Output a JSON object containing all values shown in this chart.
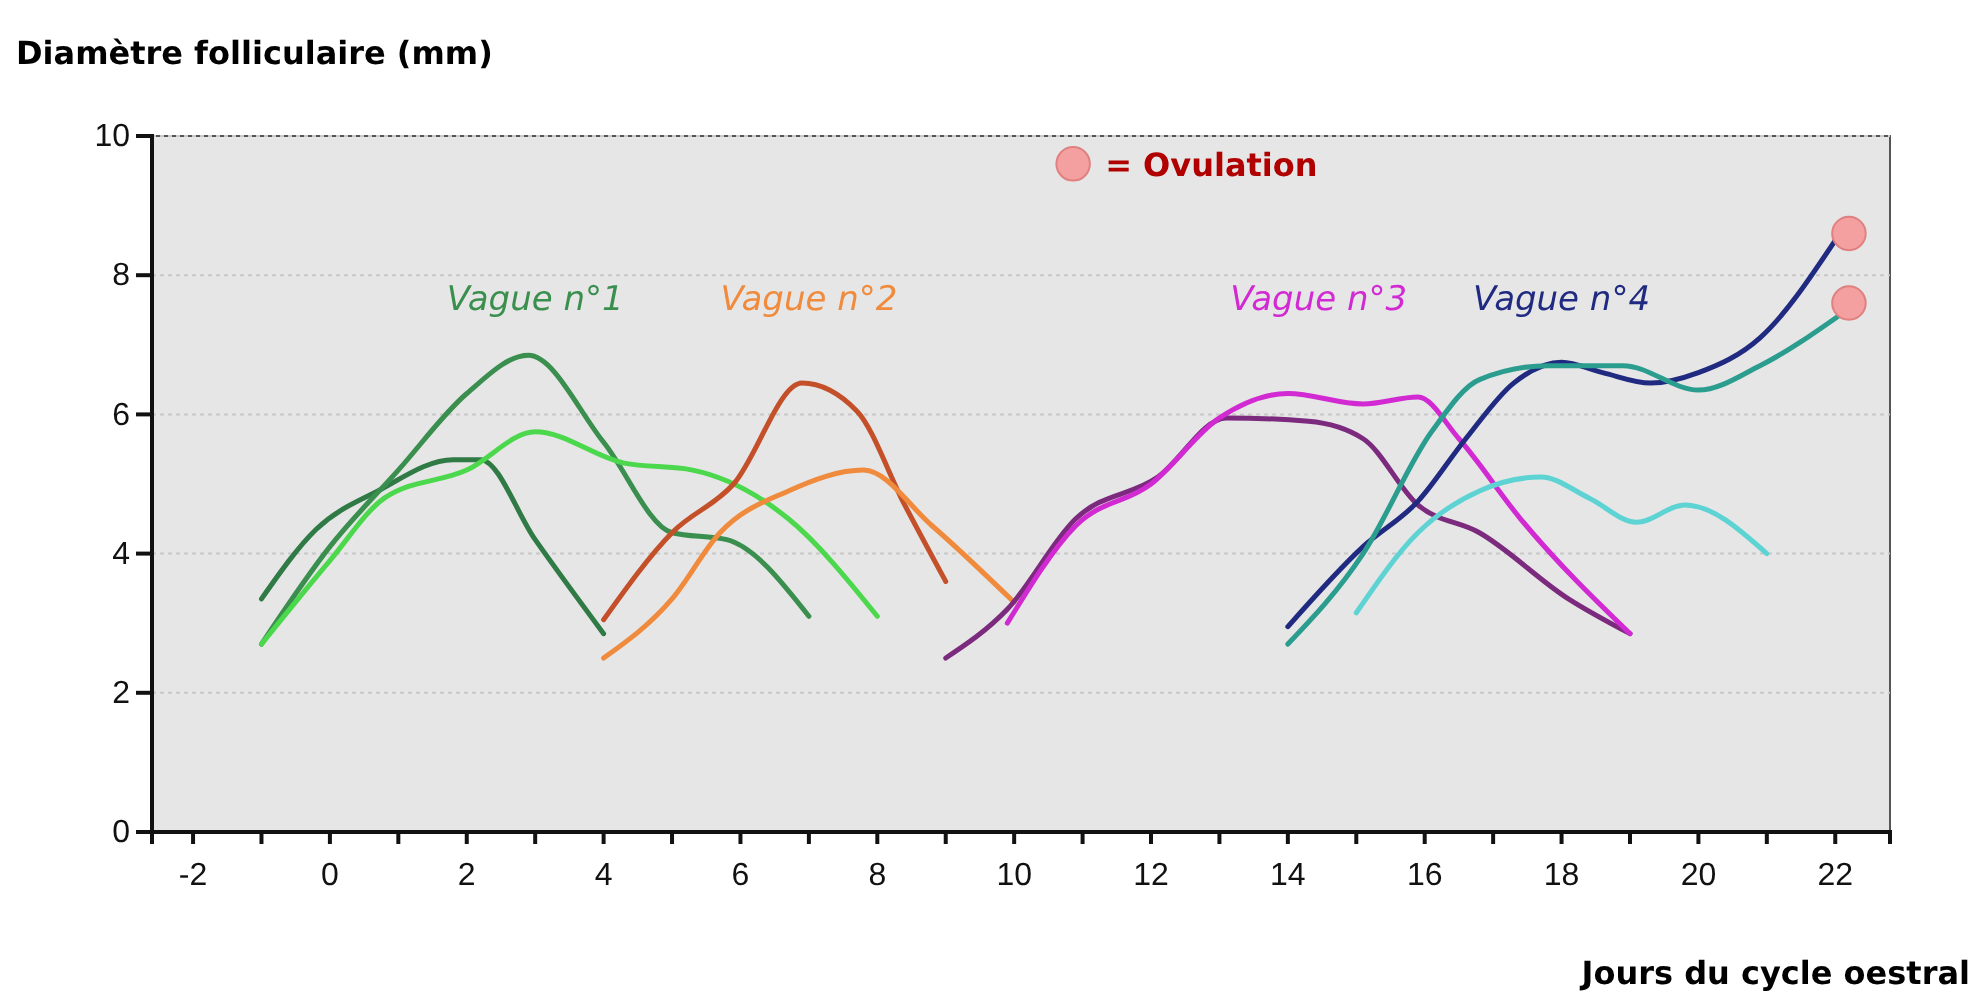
{
  "chart_data": {
    "type": "line",
    "xlabel": "Jours du cycle oestral",
    "ylabel": "Diamètre folliculaire (mm)",
    "xlim": [
      -2.6,
      22.8
    ],
    "ylim": [
      0,
      10
    ],
    "xticks": [
      -2,
      {
        "value": -1,
        "label": null
      },
      0,
      {
        "value": 1,
        "label": null
      },
      2,
      {
        "value": 3,
        "label": null
      },
      4,
      {
        "value": 5,
        "label": null
      },
      6,
      {
        "value": 7,
        "label": null
      },
      8,
      {
        "value": 9,
        "label": null
      },
      10,
      {
        "value": 11,
        "label": null
      },
      12,
      {
        "value": 13,
        "label": null
      },
      14,
      {
        "value": 15,
        "label": null
      },
      16,
      {
        "value": 17,
        "label": null
      },
      18,
      {
        "value": 19,
        "label": null
      },
      20,
      {
        "value": 21,
        "label": null
      },
      22
    ],
    "yticks": [
      0,
      2,
      4,
      6,
      8,
      10
    ],
    "grid": "y",
    "legend": "top",
    "marker": "none",
    "line_style": "solid",
    "series": [
      {
        "color": "#2f7a45",
        "x": [
          -1,
          -0.2,
          0.7,
          1.8,
          2.2,
          3,
          4
        ],
        "values": [
          3.35,
          4.35,
          4.9,
          5.35,
          5.35,
          4.2,
          2.85
        ]
      },
      {
        "name": "Vague n°1",
        "color": "#3a8f4e",
        "x": [
          -1,
          0,
          1,
          2,
          2.9,
          4,
          5,
          5.8,
          7
        ],
        "values": [
          2.7,
          4.1,
          5.2,
          6.3,
          6.85,
          5.6,
          4.3,
          4.2,
          3.1
        ]
      },
      {
        "color": "#4cd84c",
        "x": [
          -1,
          0,
          0.8,
          2,
          3,
          4.3,
          5.3,
          6.7,
          8
        ],
        "values": [
          2.7,
          3.9,
          4.8,
          5.2,
          5.75,
          5.3,
          5.2,
          4.5,
          3.1
        ]
      },
      {
        "color": "#c4502a",
        "x": [
          4,
          5,
          5.9,
          6.9,
          7.7,
          8.4,
          9
        ],
        "values": [
          3.05,
          4.3,
          5.0,
          6.45,
          6.05,
          4.7,
          3.6
        ]
      },
      {
        "name": "Vague n°2",
        "color": "#f08a3c",
        "x": [
          4,
          5,
          5.7,
          6.7,
          7.8,
          8.8,
          10
        ],
        "values": [
          2.5,
          3.35,
          4.3,
          4.9,
          5.2,
          4.4,
          3.3
        ]
      },
      {
        "color": "#7b2a7e",
        "x": [
          9,
          9.9,
          10.9,
          12.1,
          13.1,
          14.3,
          15.1,
          15.9,
          16.8,
          18.1,
          19
        ],
        "values": [
          2.5,
          3.2,
          4.5,
          5.1,
          5.95,
          5.9,
          5.65,
          4.7,
          4.3,
          3.35,
          2.85
        ]
      },
      {
        "name": "Vague n°3",
        "color": "#d22ad2",
        "x": [
          9.9,
          10.9,
          12,
          13,
          14,
          15.1,
          15.9,
          16.5,
          17.4,
          19
        ],
        "values": [
          3.0,
          4.4,
          5.0,
          5.95,
          6.3,
          6.15,
          6.25,
          5.65,
          4.5,
          2.85
        ]
      },
      {
        "name": "Vague n°4",
        "color": "#1f2a80",
        "x": [
          14,
          15.1,
          15.9,
          16.6,
          17.3,
          18,
          18.6,
          19.3,
          20,
          20.9,
          22
        ],
        "values": [
          2.95,
          4.1,
          4.75,
          5.65,
          6.45,
          6.75,
          6.6,
          6.45,
          6.6,
          7.1,
          8.5
        ]
      },
      {
        "color": "#2a9d8f",
        "x": [
          14,
          15.1,
          16.1,
          16.8,
          17.8,
          18.9,
          20,
          20.9,
          22.1
        ],
        "values": [
          2.7,
          4.0,
          5.75,
          6.5,
          6.7,
          6.7,
          6.35,
          6.7,
          7.45
        ]
      },
      {
        "color": "#5ed3d3",
        "x": [
          15,
          15.9,
          16.8,
          17.7,
          18.4,
          19.1,
          19.8,
          21
        ],
        "values": [
          3.15,
          4.3,
          4.9,
          5.1,
          4.8,
          4.45,
          4.7,
          4.0
        ]
      },
      {
        "type": "scatter",
        "name": "= Ovulation",
        "color": "#f4a0a0",
        "marker": "circle",
        "x": [
          22.2,
          22.2
        ],
        "values": [
          8.6,
          7.6
        ]
      }
    ]
  }
}
